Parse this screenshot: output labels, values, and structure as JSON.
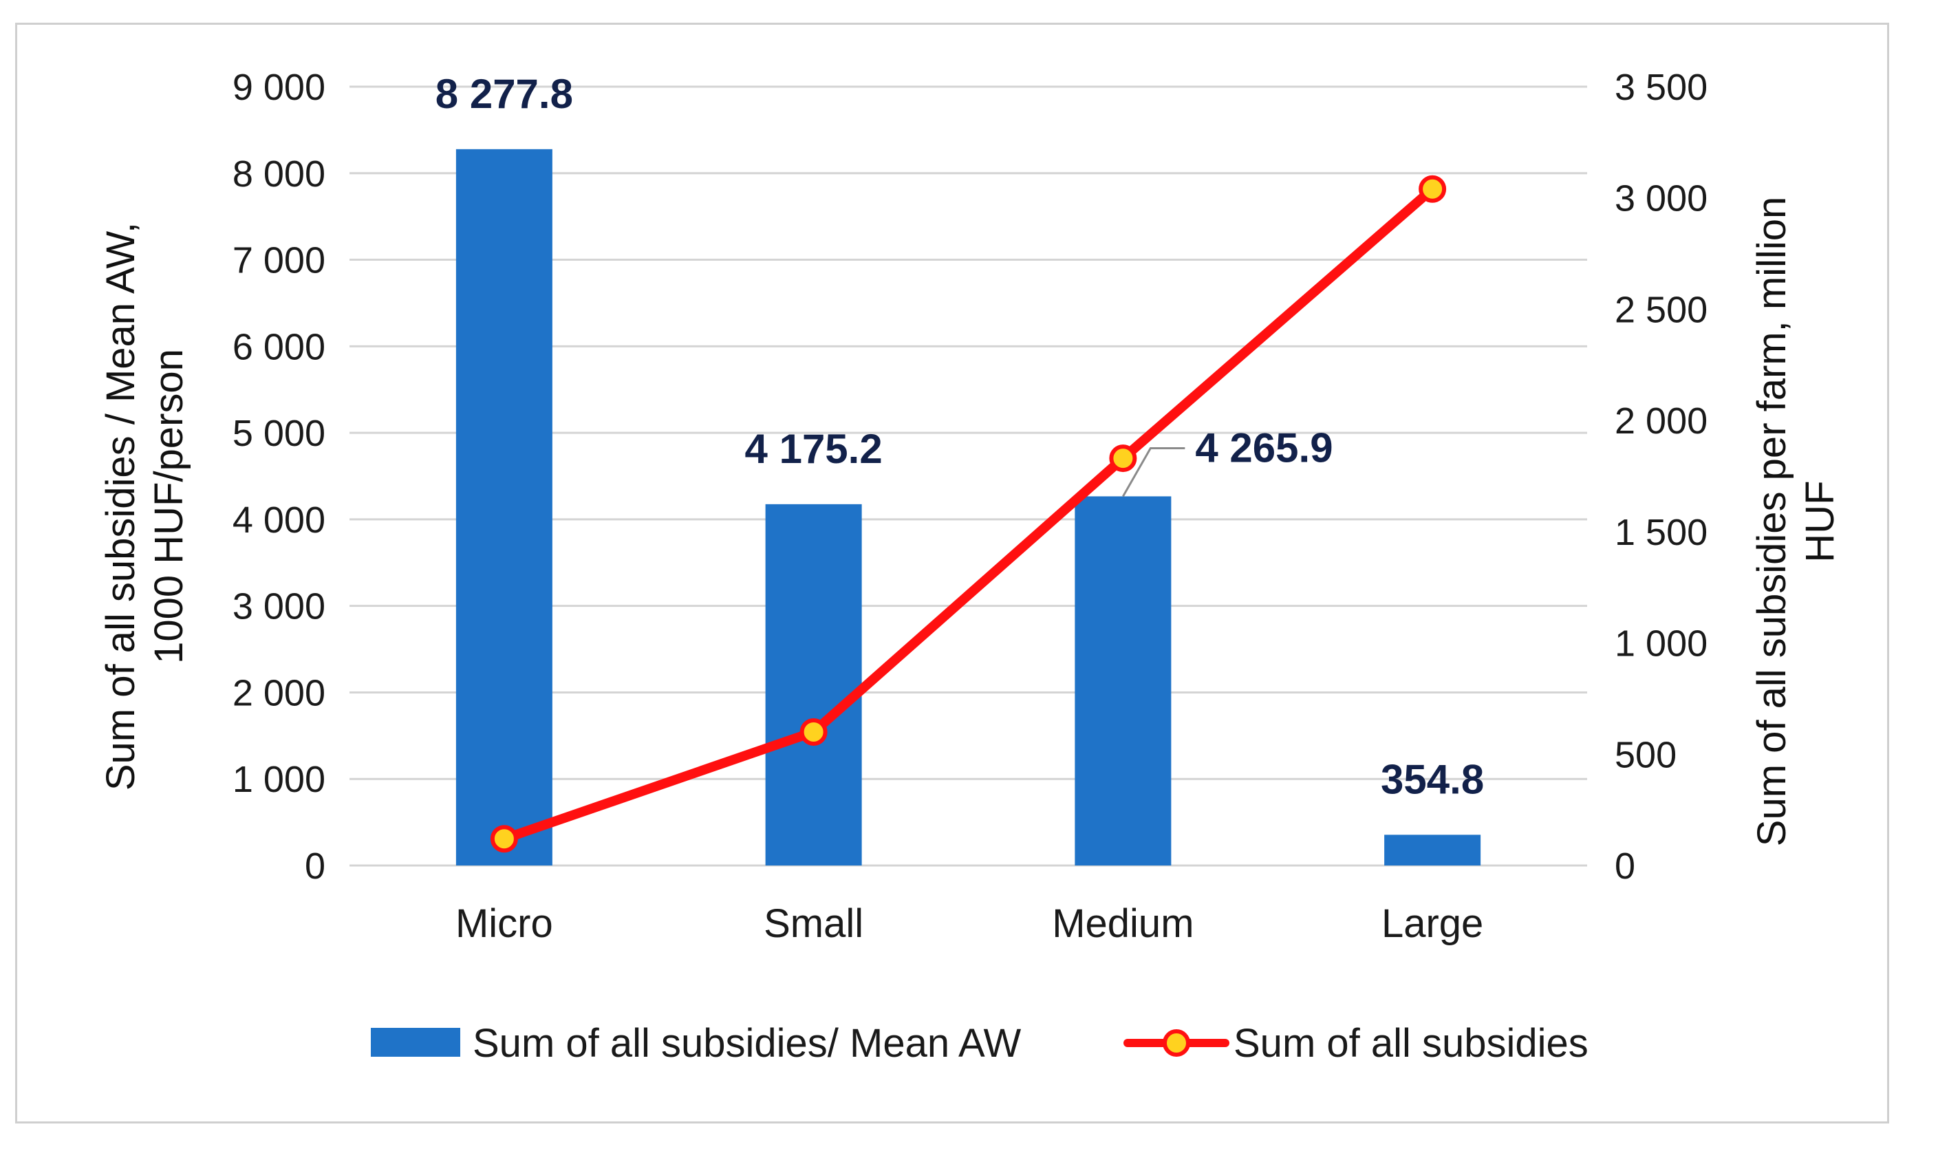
{
  "chart_data": {
    "type": "bar",
    "categories": [
      "Micro",
      "Small",
      "Medium",
      "Large"
    ],
    "series": [
      {
        "name": "Sum of all subsidies/ Mean AW",
        "kind": "bar",
        "axis": "left",
        "values": [
          8277.8,
          4175.2,
          4265.9,
          354.8
        ],
        "data_labels": [
          "8 277.8",
          "4 175.2",
          "4 265.9",
          "354.8"
        ],
        "color": "#1f73c8"
      },
      {
        "name": "Sum of all subsidies",
        "kind": "line",
        "axis": "right",
        "values": [
          120,
          600,
          1830,
          3040
        ],
        "color": "#ff1010",
        "marker_color": "#ffd21f"
      }
    ],
    "y_left": {
      "label_line1": "Sum of all subsidies  / Mean AW,",
      "label_line2": "1000 HUF/person",
      "ylim": [
        0,
        9000
      ],
      "ticks": [
        0,
        1000,
        2000,
        3000,
        4000,
        5000,
        6000,
        7000,
        8000,
        9000
      ],
      "tick_labels": [
        "0",
        "1 000",
        "2 000",
        "3 000",
        "4 000",
        "5 000",
        "6 000",
        "7 000",
        "8 000",
        "9 000"
      ]
    },
    "y_right": {
      "label_line1": "Sum of all subsidies per farm, million",
      "label_line2": "HUF",
      "ylim": [
        0,
        3500
      ],
      "ticks": [
        0,
        500,
        1000,
        1500,
        2000,
        2500,
        3000,
        3500
      ],
      "tick_labels": [
        "0",
        "500",
        "1 000",
        "1 500",
        "2 000",
        "2 500",
        "3 000",
        "3 500"
      ]
    },
    "grid": true,
    "legend_position": "bottom",
    "data_label_color": "#12214a",
    "gridline_color": "#d4d4d4"
  }
}
